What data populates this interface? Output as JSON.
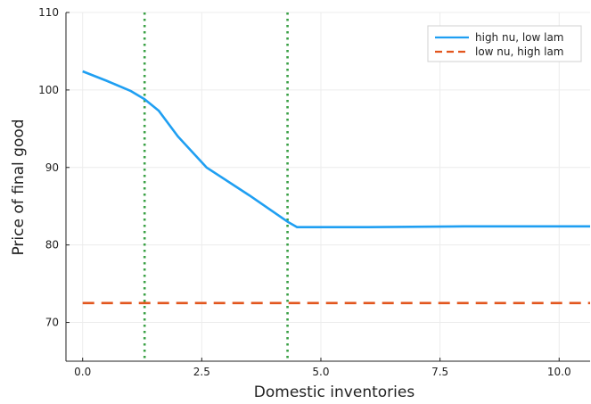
{
  "chart_data": {
    "type": "line",
    "title": "",
    "xlabel": "Domestic inventories",
    "ylabel": "Price of final good",
    "xlim": [
      -0.35,
      10.65
    ],
    "ylim": [
      65,
      110
    ],
    "xticks": [
      0,
      2.5,
      5,
      7.5,
      10
    ],
    "xtick_labels": [
      "0.0",
      "2.5",
      "5.0",
      "7.5",
      "10.0"
    ],
    "yticks": [
      70,
      80,
      90,
      100,
      110
    ],
    "ytick_labels": [
      "70",
      "80",
      "90",
      "100",
      "110"
    ],
    "grid": true,
    "legend_position": "top-right",
    "series": [
      {
        "name": "high nu, low lam",
        "color": "#1f9ff2",
        "style": "solid",
        "x": [
          0.0,
          0.5,
          1.0,
          1.3,
          1.6,
          2.0,
          2.6,
          3.5,
          4.3,
          4.5,
          6.0,
          8.0,
          10.65
        ],
        "y": [
          102.4,
          101.2,
          99.9,
          98.8,
          97.3,
          94.0,
          90.0,
          86.4,
          83.0,
          82.3,
          82.3,
          82.4,
          82.4
        ]
      },
      {
        "name": "low nu, high lam",
        "color": "#e2561e",
        "style": "dashed",
        "x": [
          0.0,
          10.65
        ],
        "y": [
          72.5,
          72.5
        ]
      }
    ],
    "vlines": {
      "color": "#3aa045",
      "style": "dotted",
      "x": [
        1.3,
        4.3
      ]
    }
  }
}
